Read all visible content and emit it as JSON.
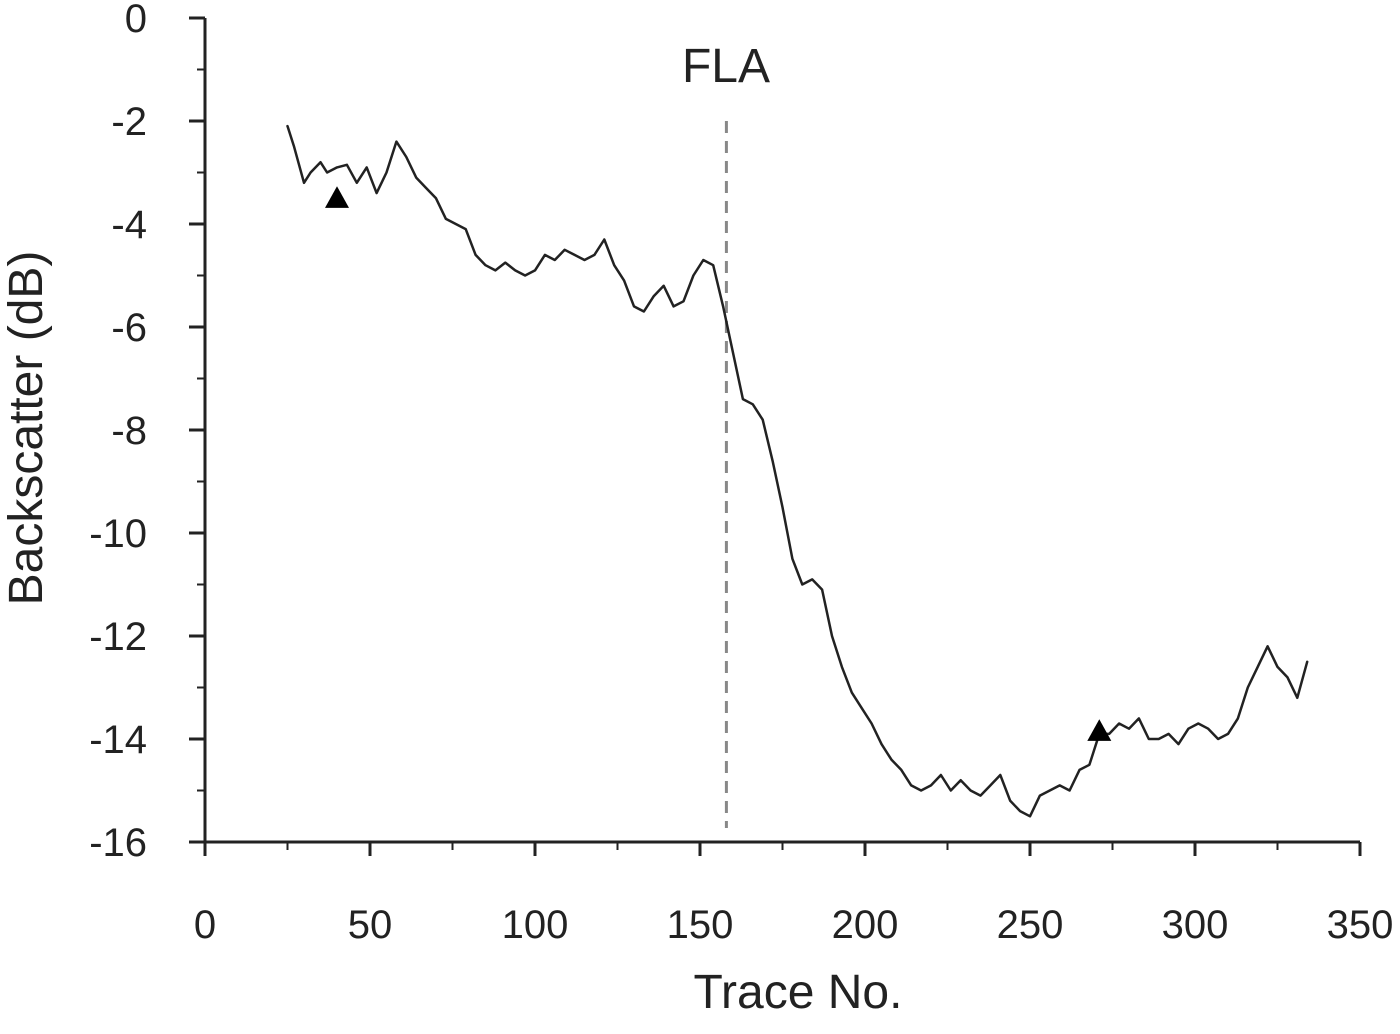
{
  "chart_data": {
    "type": "line",
    "title": "",
    "xlabel": "Trace No.",
    "ylabel": "Backscatter (dB)",
    "xlim": [
      0,
      350
    ],
    "ylim": [
      -16,
      0
    ],
    "x_ticks": [
      0,
      50,
      100,
      150,
      200,
      250,
      300,
      350
    ],
    "y_ticks": [
      0,
      -2,
      -4,
      -6,
      -8,
      -10,
      -12,
      -14,
      -16
    ],
    "grid": false,
    "legend": "none",
    "colors": {
      "line": "#222222",
      "axis": "#222222",
      "reference_line": "#888888",
      "marker": "#000000"
    },
    "reference_line": {
      "label": "FLA",
      "x": 158,
      "y_top": -2
    },
    "markers": [
      {
        "x": 40,
        "y": -3.5,
        "shape": "triangle"
      },
      {
        "x": 271,
        "y": -13.85,
        "shape": "triangle"
      }
    ],
    "series": [
      {
        "x": [
          25,
          27,
          30,
          32,
          35,
          37,
          40,
          43,
          46,
          49,
          52,
          55,
          58,
          61,
          64,
          67,
          70,
          73,
          76,
          79,
          82,
          85,
          88,
          91,
          94,
          97,
          100,
          103,
          106,
          109,
          112,
          115,
          118,
          121,
          124,
          127,
          130,
          133,
          136,
          139,
          142,
          145,
          148,
          151,
          154,
          157,
          160,
          163,
          166,
          169,
          172,
          175,
          178,
          181,
          184,
          187,
          190,
          193,
          196,
          199,
          202,
          205,
          208,
          211,
          214,
          217,
          220,
          223,
          226,
          229,
          232,
          235,
          238,
          241,
          244,
          247,
          250,
          253,
          256,
          259,
          262,
          265,
          268,
          271,
          274,
          277,
          280,
          283,
          286,
          289,
          292,
          295,
          298,
          301,
          304,
          307,
          310,
          313,
          316,
          319,
          322,
          325,
          328,
          331,
          334
        ],
        "y": [
          -2.1,
          -2.5,
          -3.2,
          -3.0,
          -2.8,
          -3.0,
          -2.9,
          -2.85,
          -3.2,
          -2.9,
          -3.4,
          -3.0,
          -2.4,
          -2.7,
          -3.1,
          -3.3,
          -3.5,
          -3.9,
          -4.0,
          -4.1,
          -4.6,
          -4.8,
          -4.9,
          -4.75,
          -4.9,
          -5.0,
          -4.9,
          -4.6,
          -4.7,
          -4.5,
          -4.6,
          -4.7,
          -4.6,
          -4.3,
          -4.8,
          -5.1,
          -5.6,
          -5.7,
          -5.4,
          -5.2,
          -5.6,
          -5.5,
          -5.0,
          -4.7,
          -4.8,
          -5.6,
          -6.5,
          -7.4,
          -7.5,
          -7.8,
          -8.6,
          -9.5,
          -10.5,
          -11.0,
          -10.9,
          -11.1,
          -12.0,
          -12.6,
          -13.1,
          -13.4,
          -13.7,
          -14.1,
          -14.4,
          -14.6,
          -14.9,
          -15.0,
          -14.9,
          -14.7,
          -15.0,
          -14.8,
          -15.0,
          -15.1,
          -14.9,
          -14.7,
          -15.2,
          -15.4,
          -15.5,
          -15.1,
          -15.0,
          -14.9,
          -15.0,
          -14.6,
          -14.5,
          -13.9,
          -13.9,
          -13.7,
          -13.8,
          -13.6,
          -14.0,
          -14.0,
          -13.9,
          -14.1,
          -13.8,
          -13.7,
          -13.8,
          -14.0,
          -13.9,
          -13.6,
          -13.0,
          -12.6,
          -12.2,
          -12.6,
          -12.8,
          -13.2,
          -12.5
        ]
      }
    ]
  }
}
